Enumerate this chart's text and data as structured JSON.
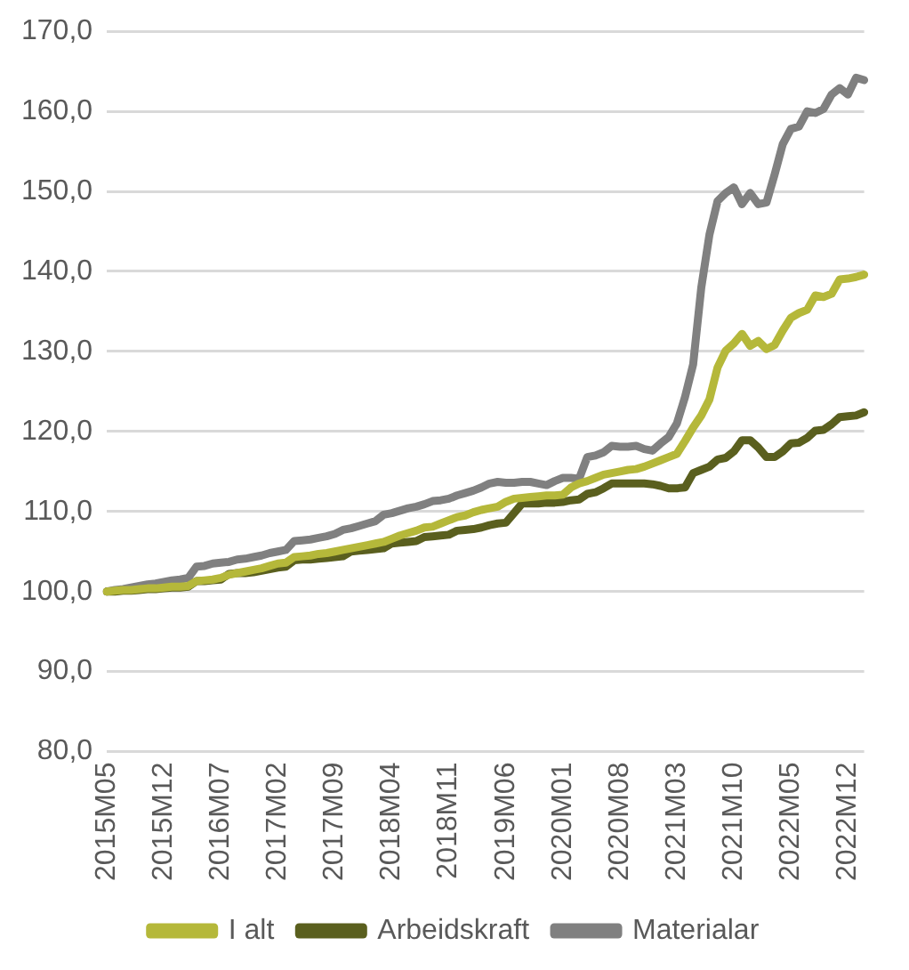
{
  "chart_data": {
    "type": "line",
    "categories": [
      "2015M05",
      null,
      null,
      null,
      null,
      null,
      null,
      "2015M12",
      null,
      null,
      null,
      null,
      null,
      null,
      "2016M07",
      null,
      null,
      null,
      null,
      null,
      null,
      "2017M02",
      null,
      null,
      null,
      null,
      null,
      null,
      "2017M09",
      null,
      null,
      null,
      null,
      null,
      null,
      "2018M04",
      null,
      null,
      null,
      null,
      null,
      null,
      "2018M11",
      null,
      null,
      null,
      null,
      null,
      null,
      "2019M06",
      null,
      null,
      null,
      null,
      null,
      null,
      "2020M01",
      null,
      null,
      null,
      null,
      null,
      null,
      "2020M08",
      null,
      null,
      null,
      null,
      null,
      null,
      "2021M03",
      null,
      null,
      null,
      null,
      null,
      null,
      "2021M10",
      null,
      null,
      null,
      null,
      null,
      null,
      "2022M05",
      null,
      null,
      null,
      null,
      null,
      null,
      "2022M12",
      null,
      null
    ],
    "series": [
      {
        "name": "I alt",
        "color": "#b5b83a",
        "values": [
          100.0,
          100.1,
          100.2,
          100.2,
          100.3,
          100.4,
          100.4,
          100.5,
          100.6,
          100.6,
          100.7,
          101.3,
          101.4,
          101.5,
          101.7,
          102.1,
          102.3,
          102.5,
          102.7,
          102.9,
          103.2,
          103.5,
          103.6,
          104.3,
          104.4,
          104.5,
          104.7,
          104.8,
          105.0,
          105.2,
          105.4,
          105.6,
          105.8,
          106.0,
          106.2,
          106.6,
          107.0,
          107.3,
          107.6,
          108.0,
          108.1,
          108.5,
          108.9,
          109.3,
          109.5,
          109.9,
          110.2,
          110.4,
          110.6,
          111.2,
          111.6,
          111.7,
          111.8,
          111.9,
          112.0,
          112.0,
          112.1,
          113.0,
          113.5,
          113.8,
          114.2,
          114.6,
          114.8,
          115.0,
          115.2,
          115.3,
          115.6,
          116.0,
          116.4,
          116.8,
          117.2,
          118.8,
          120.5,
          122.0,
          124.0,
          128.0,
          130.1,
          131.0,
          132.2,
          130.7,
          131.3,
          130.3,
          130.8,
          132.6,
          134.2,
          134.8,
          135.2,
          137.0,
          136.8,
          137.2,
          139.0,
          139.1,
          139.3,
          139.6
        ]
      },
      {
        "name": "Arbeidskraft",
        "color": "#5a5f1e",
        "values": [
          100.0,
          100.0,
          100.1,
          100.1,
          100.2,
          100.3,
          100.3,
          100.4,
          100.5,
          100.5,
          100.6,
          101.3,
          101.3,
          101.4,
          101.5,
          102.2,
          102.3,
          102.3,
          102.4,
          102.6,
          102.8,
          103.0,
          103.1,
          103.9,
          104.0,
          104.0,
          104.1,
          104.2,
          104.3,
          104.4,
          105.0,
          105.1,
          105.2,
          105.3,
          105.4,
          106.0,
          106.1,
          106.2,
          106.3,
          106.8,
          106.9,
          107.0,
          107.1,
          107.6,
          107.7,
          107.8,
          108.0,
          108.3,
          108.5,
          108.6,
          109.8,
          111.0,
          111.0,
          111.0,
          111.1,
          111.1,
          111.2,
          111.4,
          111.5,
          112.2,
          112.4,
          112.9,
          113.5,
          113.5,
          113.5,
          113.5,
          113.5,
          113.4,
          113.2,
          112.9,
          112.9,
          113.0,
          114.8,
          115.2,
          115.6,
          116.5,
          116.7,
          117.5,
          118.9,
          118.9,
          118.0,
          116.8,
          116.8,
          117.5,
          118.5,
          118.6,
          119.2,
          120.1,
          120.2,
          120.9,
          121.8,
          121.9,
          122.0,
          122.4
        ]
      },
      {
        "name": "Materialar",
        "color": "#808080",
        "values": [
          100.0,
          100.2,
          100.3,
          100.5,
          100.7,
          100.9,
          101.0,
          101.2,
          101.4,
          101.5,
          101.7,
          103.1,
          103.2,
          103.5,
          103.6,
          103.7,
          104.0,
          104.1,
          104.3,
          104.5,
          104.8,
          105.0,
          105.2,
          106.3,
          106.4,
          106.5,
          106.7,
          106.9,
          107.2,
          107.7,
          107.9,
          108.2,
          108.5,
          108.8,
          109.6,
          109.8,
          110.1,
          110.4,
          110.6,
          110.9,
          111.3,
          111.4,
          111.6,
          112.0,
          112.3,
          112.6,
          113.0,
          113.5,
          113.7,
          113.6,
          113.6,
          113.7,
          113.7,
          113.5,
          113.3,
          113.8,
          114.2,
          114.2,
          114.1,
          116.8,
          117.0,
          117.4,
          118.2,
          118.1,
          118.1,
          118.2,
          117.8,
          117.6,
          118.5,
          119.3,
          121.0,
          124.3,
          128.4,
          138.0,
          144.6,
          148.8,
          149.8,
          150.5,
          148.4,
          149.8,
          148.4,
          148.6,
          152.1,
          155.9,
          157.8,
          158.1,
          160.0,
          159.8,
          160.3,
          162.1,
          162.9,
          162.1,
          164.2,
          163.9
        ]
      }
    ],
    "ylim": [
      80,
      170
    ],
    "yticks": [
      {
        "value": 80,
        "label": "80,0"
      },
      {
        "value": 90,
        "label": "90,0"
      },
      {
        "value": 100,
        "label": "100,0"
      },
      {
        "value": 110,
        "label": "110,0"
      },
      {
        "value": 120,
        "label": "120,0"
      },
      {
        "value": 130,
        "label": "130,0"
      },
      {
        "value": 140,
        "label": "140,0"
      },
      {
        "value": 150,
        "label": "150,0"
      },
      {
        "value": 160,
        "label": "160,0"
      },
      {
        "value": 170,
        "label": "170,0"
      }
    ],
    "grid": "y",
    "legend": "bottom",
    "marker": "none",
    "line_style": "solid"
  }
}
